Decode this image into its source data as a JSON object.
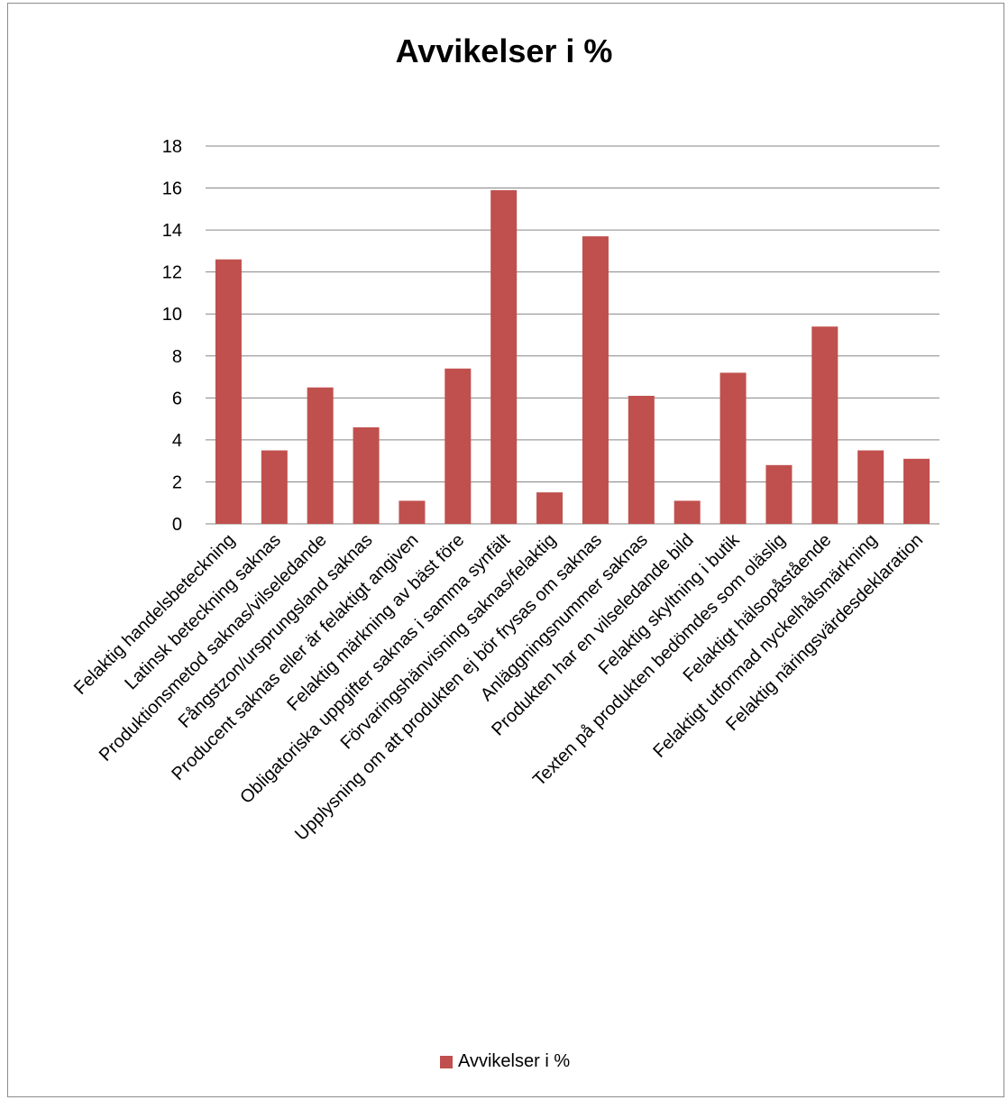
{
  "colors": {
    "bar": "#C0504D",
    "grid": "#868686",
    "text": "#000000"
  },
  "chart_data": {
    "type": "bar",
    "title": "Avvikelser i %",
    "xlabel": "",
    "ylabel": "",
    "ylim": [
      0,
      18
    ],
    "yticks": [
      "0",
      "2",
      "4",
      "6",
      "8",
      "10",
      "12",
      "14",
      "16",
      "18"
    ],
    "grid": true,
    "legend_position": "bottom",
    "categories": [
      "Felaktig handelsbeteckning",
      "Latinsk beteckning saknas",
      "Produktionsmetod saknas/vilseledande",
      "Fångstzon/ursprungsland saknas",
      "Producent saknas eller är felaktigt angiven",
      "Felaktig märkning av bäst före",
      "Obligatoriska uppgifter saknas i samma synfält",
      "Förvaringshänvisning saknas/felaktig",
      "Upplysning om att produkten ej bör frysas om saknas",
      "Anläggningsnummer saknas",
      "Produkten har en vilseledande bild",
      "Felaktig skyltning i butik",
      "Texten på produkten bedömdes som oläslig",
      "Felaktigt hälsopåstående",
      "Felaktigt utformad nyckelhålsmärkning",
      "Felaktig näringsvärdesdeklaration"
    ],
    "series": [
      {
        "name": "Avvikelser i %",
        "values": [
          12.6,
          3.5,
          6.5,
          4.6,
          1.1,
          7.4,
          15.9,
          1.5,
          13.7,
          6.1,
          1.1,
          7.2,
          2.8,
          9.4,
          3.5,
          3.1
        ]
      }
    ]
  }
}
